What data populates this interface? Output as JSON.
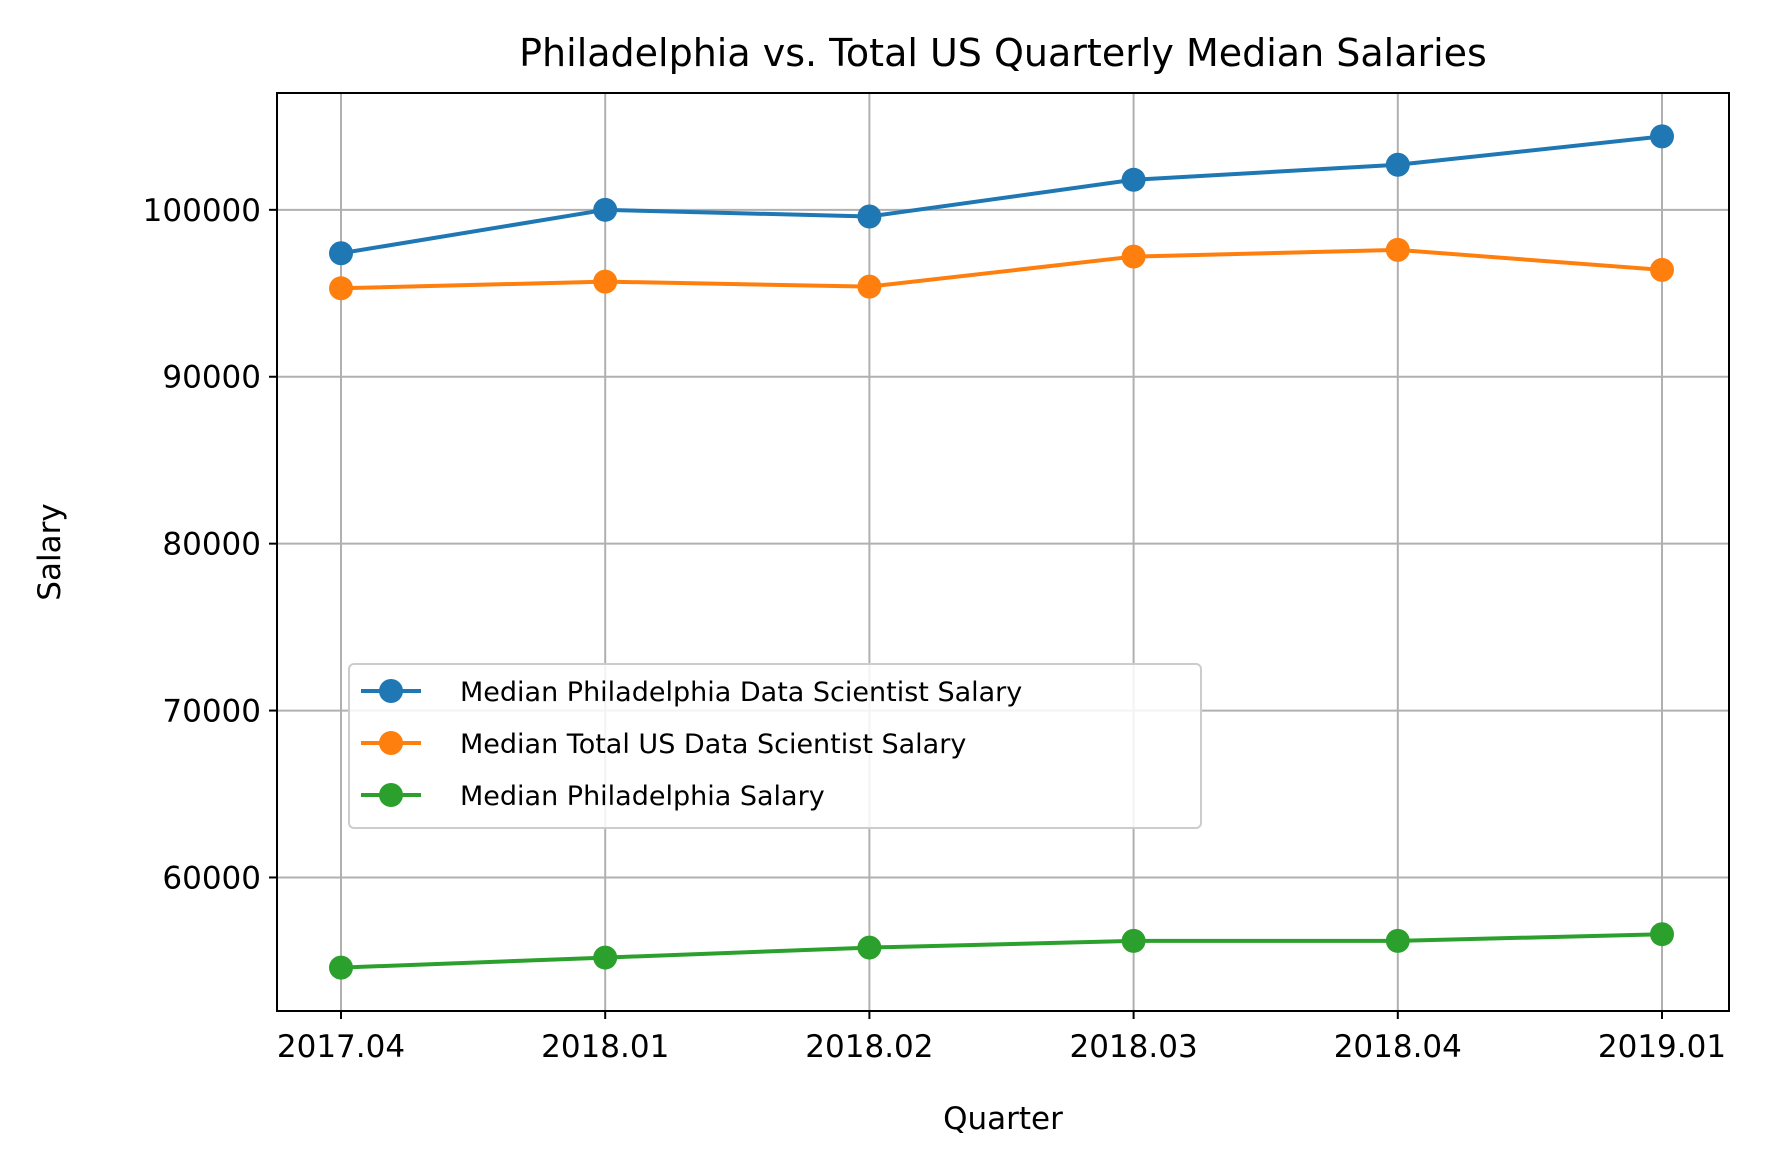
{
  "chart_data": {
    "type": "line",
    "title": "Philadelphia vs. Total US Quarterly Median Salaries",
    "xlabel": "Quarter",
    "ylabel": "Salary",
    "categories": [
      "2017.04",
      "2018.01",
      "2018.02",
      "2018.03",
      "2018.04",
      "2019.01"
    ],
    "ylim": [
      52000,
      107000
    ],
    "yticks": [
      "60000",
      "70000",
      "80000",
      "90000",
      "100000"
    ],
    "grid": true,
    "legend_position": "center-left",
    "series": [
      {
        "name": "Median Philadelphia Data Scientist Salary",
        "color": "#1f77b4",
        "values": [
          97400,
          100000,
          99600,
          101800,
          102700,
          104400
        ]
      },
      {
        "name": "Median Total US Data Scientist Salary",
        "color": "#ff7f0e",
        "values": [
          95300,
          95700,
          95400,
          97200,
          97600,
          96400
        ]
      },
      {
        "name": "Median Philadelphia Salary",
        "color": "#2ca02c",
        "values": [
          54600,
          55200,
          55800,
          56200,
          56200,
          56600
        ]
      }
    ]
  }
}
